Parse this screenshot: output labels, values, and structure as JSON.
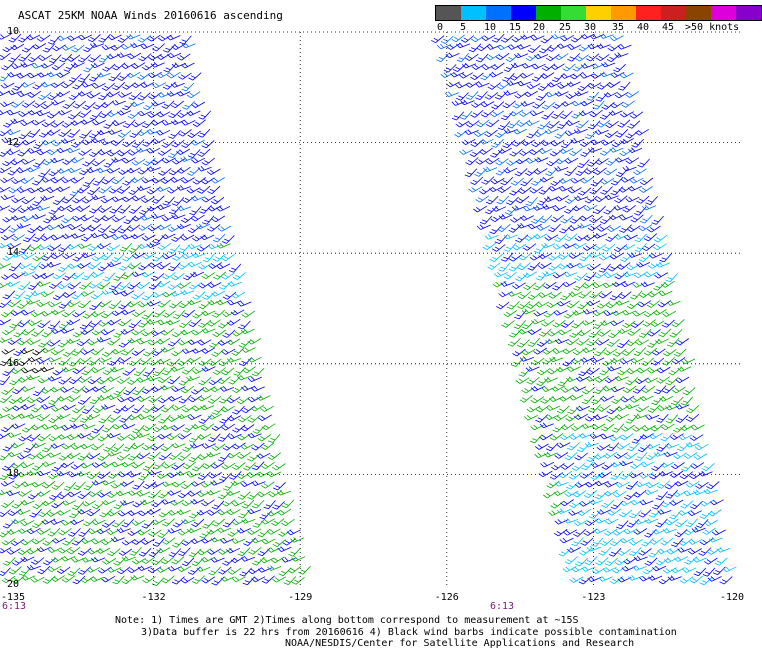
{
  "title": "ASCAT 25KM NOAA Winds 20160616 ascending",
  "legend": {
    "colors": [
      "#555555",
      "#00c0ff",
      "#0070ff",
      "#0000ff",
      "#00b000",
      "#33dd33",
      "#ffd000",
      "#ff9900",
      "#ff2020",
      "#cc2020",
      "#884400",
      "#dd00dd",
      "#8800cc"
    ],
    "labels": [
      "0",
      "5",
      "10",
      "15",
      "20",
      "25",
      "30",
      "35",
      "40",
      "45",
      ">50 knots"
    ],
    "units": "knots"
  },
  "axes": {
    "x_ticks": [
      "-135",
      "-132",
      "-129",
      "-126",
      "-123",
      "-120"
    ],
    "y_ticks": [
      "10",
      "12",
      "14",
      "16",
      "18",
      "20"
    ],
    "lon_range": [
      -135,
      -120
    ],
    "lat_range": [
      20,
      10
    ],
    "grid": "dotted"
  },
  "swaths": [
    {
      "name": "swath-west",
      "time": "6:13",
      "lon_top": [
        -135,
        -131.2
      ],
      "lon_bottom": [
        -135,
        -128.7
      ]
    },
    {
      "name": "swath-east",
      "time": "6:13",
      "lon_top": [
        -126.1,
        -122.3
      ],
      "lon_bottom": [
        -123.3,
        -120
      ]
    }
  ],
  "notes": [
    "Note: 1) Times are GMT 2)Times along bottom correspond to measurement at ~15S",
    "3)Data buffer is 22 hrs from 20160616 4) Black wind barbs indicate possible contamination",
    "NOAA/NESDIS/Center for Satellite Applications and Research"
  ]
}
